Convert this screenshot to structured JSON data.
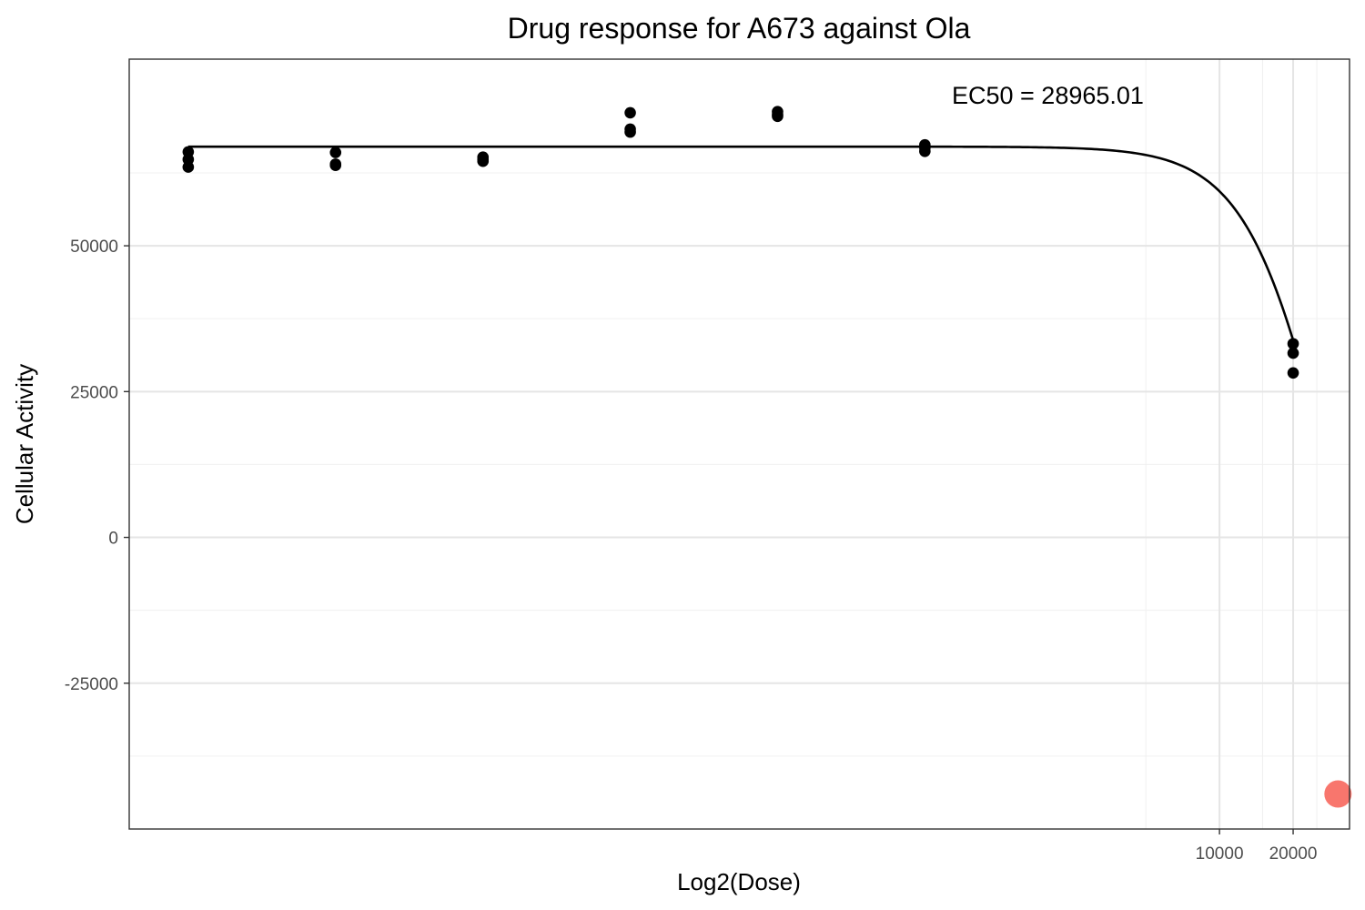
{
  "chart_data": {
    "type": "scatter",
    "title": "Drug response for A673 against Ola",
    "xlabel": "Log2(Dose)",
    "ylabel": "Cellular Activity",
    "x_scale": "log2",
    "xlim": [
      0.35,
      34000
    ],
    "ylim": [
      -50000,
      82000
    ],
    "x_ticks": [
      10000,
      20000
    ],
    "x_tick_labels": [
      "10000",
      "20000"
    ],
    "x_minor_gridlines": [
      5000,
      15000,
      25000
    ],
    "y_ticks": [
      -25000,
      0,
      25000,
      50000
    ],
    "y_tick_labels": [
      "-25000",
      "0",
      "25000",
      "50000"
    ],
    "y_minor_gridlines": [
      -37500,
      -12500,
      12500,
      37500,
      62500
    ],
    "grid": true,
    "legend": false,
    "point_color": "#000000",
    "curve_color": "#000000",
    "highlight_color": "#F8766D",
    "series": [
      {
        "points": [
          [
            0.61,
            66100
          ],
          [
            0.61,
            64800
          ],
          [
            0.61,
            63500
          ],
          [
            2.44,
            66000
          ],
          [
            2.44,
            64000
          ],
          [
            2.44,
            63800
          ],
          [
            9.77,
            65200
          ],
          [
            9.77,
            64800
          ],
          [
            9.77,
            64500
          ],
          [
            39.06,
            72800
          ],
          [
            39.06,
            70000
          ],
          [
            39.06,
            69500
          ],
          [
            156.25,
            73000
          ],
          [
            156.25,
            72500
          ],
          [
            156.25,
            72200
          ],
          [
            625,
            67300
          ],
          [
            625,
            66800
          ],
          [
            625,
            66200
          ],
          [
            20000,
            33200
          ],
          [
            20000,
            31600
          ],
          [
            20000,
            28200
          ]
        ]
      }
    ],
    "fit_curve": {
      "model": "log-logistic",
      "top": 67000,
      "bottom": -50000,
      "ec50": 28965.01,
      "hill": 2.5,
      "x_range": [
        0.61,
        20000
      ]
    },
    "highlight_point": [
      30500,
      -44000
    ],
    "annotation": "EC50 = 28965.01"
  }
}
